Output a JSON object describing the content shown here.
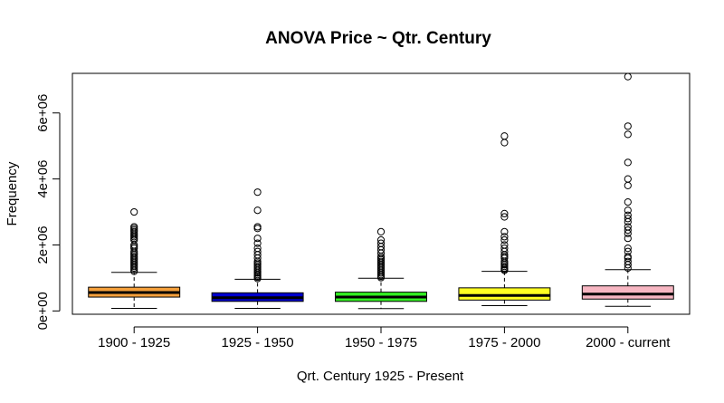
{
  "chart_data": {
    "type": "boxplot",
    "title": "ANOVA Price ~ Qtr. Century",
    "xlabel": "Qrt. Century 1925 - Present",
    "ylabel": "Frequency",
    "categories": [
      "1900 - 1925",
      "1925 - 1950",
      "1950 - 1975",
      "1975 - 2000",
      "2000 - current"
    ],
    "y_ticks": [
      0,
      2000000,
      4000000,
      6000000
    ],
    "y_tick_labels": [
      "0e+00",
      "2e+06",
      "4e+06",
      "6e+06"
    ],
    "ylim": [
      -100000,
      7200000
    ],
    "boxes": [
      {
        "category": "1900 - 1925",
        "color": "#f5a03c",
        "whisker_low": 80000,
        "q1": 420000,
        "median": 560000,
        "q3": 720000,
        "whisker_high": 1170000,
        "outliers": [
          1200000,
          1250000,
          1300000,
          1350000,
          1400000,
          1450000,
          1500000,
          1550000,
          1600000,
          1650000,
          1700000,
          1750000,
          1800000,
          1900000,
          1950000,
          2000000,
          2150000,
          2200000,
          2250000,
          2300000,
          2350000,
          2400000,
          2450000,
          2500000,
          2550000,
          3000000
        ]
      },
      {
        "category": "1925 - 1950",
        "color": "#0000cd",
        "whisker_low": 80000,
        "q1": 290000,
        "median": 400000,
        "q3": 550000,
        "whisker_high": 960000,
        "outliers": [
          980000,
          1020000,
          1060000,
          1100000,
          1150000,
          1200000,
          1250000,
          1300000,
          1350000,
          1400000,
          1450000,
          1500000,
          1600000,
          1700000,
          1800000,
          1900000,
          2050000,
          2200000,
          2500000,
          2550000,
          3050000,
          3600000
        ]
      },
      {
        "category": "1950 - 1975",
        "color": "#33ee22",
        "whisker_low": 70000,
        "q1": 290000,
        "median": 420000,
        "q3": 570000,
        "whisker_high": 990000,
        "outliers": [
          1010000,
          1050000,
          1100000,
          1150000,
          1200000,
          1250000,
          1300000,
          1350000,
          1400000,
          1450000,
          1500000,
          1550000,
          1600000,
          1650000,
          1750000,
          1850000,
          1950000,
          2050000,
          2150000,
          2400000
        ]
      },
      {
        "category": "1975 - 2000",
        "color": "#ffff22",
        "whisker_low": 160000,
        "q1": 330000,
        "median": 470000,
        "q3": 700000,
        "whisker_high": 1200000,
        "outliers": [
          1230000,
          1260000,
          1300000,
          1350000,
          1400000,
          1450000,
          1500000,
          1600000,
          1650000,
          1700000,
          1800000,
          1900000,
          2000000,
          2150000,
          2250000,
          2400000,
          2850000,
          2950000,
          5100000,
          5300000
        ]
      },
      {
        "category": "2000 - current",
        "color": "#f7b6c2",
        "whisker_low": 140000,
        "q1": 360000,
        "median": 510000,
        "q3": 760000,
        "whisker_high": 1250000,
        "outliers": [
          1300000,
          1400000,
          1500000,
          1600000,
          1650000,
          1800000,
          1900000,
          2200000,
          2350000,
          2450000,
          2550000,
          2700000,
          2800000,
          2900000,
          3050000,
          3300000,
          3800000,
          4000000,
          4500000,
          5350000,
          5600000,
          7100000
        ]
      }
    ]
  }
}
